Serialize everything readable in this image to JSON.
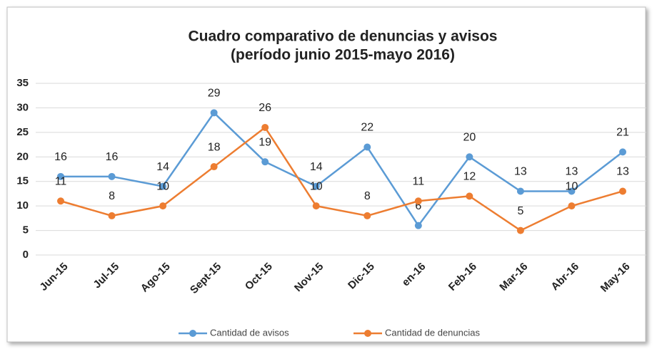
{
  "chart_data": {
    "type": "line",
    "title": "Cuadro comparativo de denuncias y avisos",
    "subtitle": "(período junio 2015-mayo  2016)",
    "categories": [
      "Jun-15",
      "Jul-15",
      "Ago-15",
      "Sept-15",
      "Oct-15",
      "Nov-15",
      "Dic-15",
      "en-16",
      "Feb-16",
      "Mar-16",
      "Abr-16",
      "May-16"
    ],
    "series": [
      {
        "name": "Cantidad de avisos",
        "color": "#5b9bd5",
        "values": [
          16,
          16,
          14,
          29,
          19,
          14,
          22,
          6,
          20,
          13,
          13,
          21
        ]
      },
      {
        "name": "Cantidad de denuncias",
        "color": "#ed7d31",
        "values": [
          11,
          8,
          10,
          18,
          26,
          10,
          8,
          11,
          12,
          5,
          10,
          13
        ]
      }
    ],
    "ylim": [
      0,
      35
    ],
    "yticks": [
      0,
      5,
      10,
      15,
      20,
      25,
      30,
      35
    ],
    "grid": true,
    "legend": "bottom"
  }
}
